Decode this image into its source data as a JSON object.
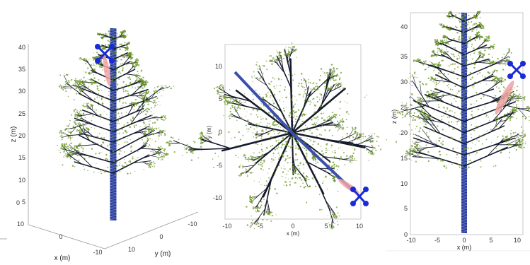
{
  "panels": [
    {
      "view": "3d",
      "z_label": "z (m)",
      "x_label": "x (m)",
      "y_label": "y (m)",
      "z_ticks": [
        "0",
        "5",
        "10",
        "15",
        "20",
        "25",
        "30",
        "35",
        "40"
      ],
      "x_ticks": [
        "10",
        "0",
        "-10"
      ],
      "y_ticks": [
        "10",
        "0",
        "-10"
      ]
    },
    {
      "view": "top",
      "x_label": "x (m)",
      "y_label": "y (m)",
      "x_ticks": [
        "-10",
        "-5",
        "0",
        "5",
        "10"
      ],
      "y_ticks": [
        "10",
        "5",
        "0",
        "-5",
        "-10"
      ]
    },
    {
      "view": "side",
      "x_label": "x (m)",
      "z_label": "z (m)",
      "x_ticks": [
        "-10",
        "-5",
        "0",
        "5",
        "10"
      ],
      "z_ticks": [
        "0",
        "5",
        "10",
        "15",
        "20",
        "25",
        "30",
        "35",
        "40"
      ]
    }
  ],
  "colors": {
    "branch": "#161a2e",
    "trunk": "#3a4fae",
    "foliage": "#6f9a2a",
    "marker": "#1a2ad6",
    "beam": "#f1a3a3"
  }
}
